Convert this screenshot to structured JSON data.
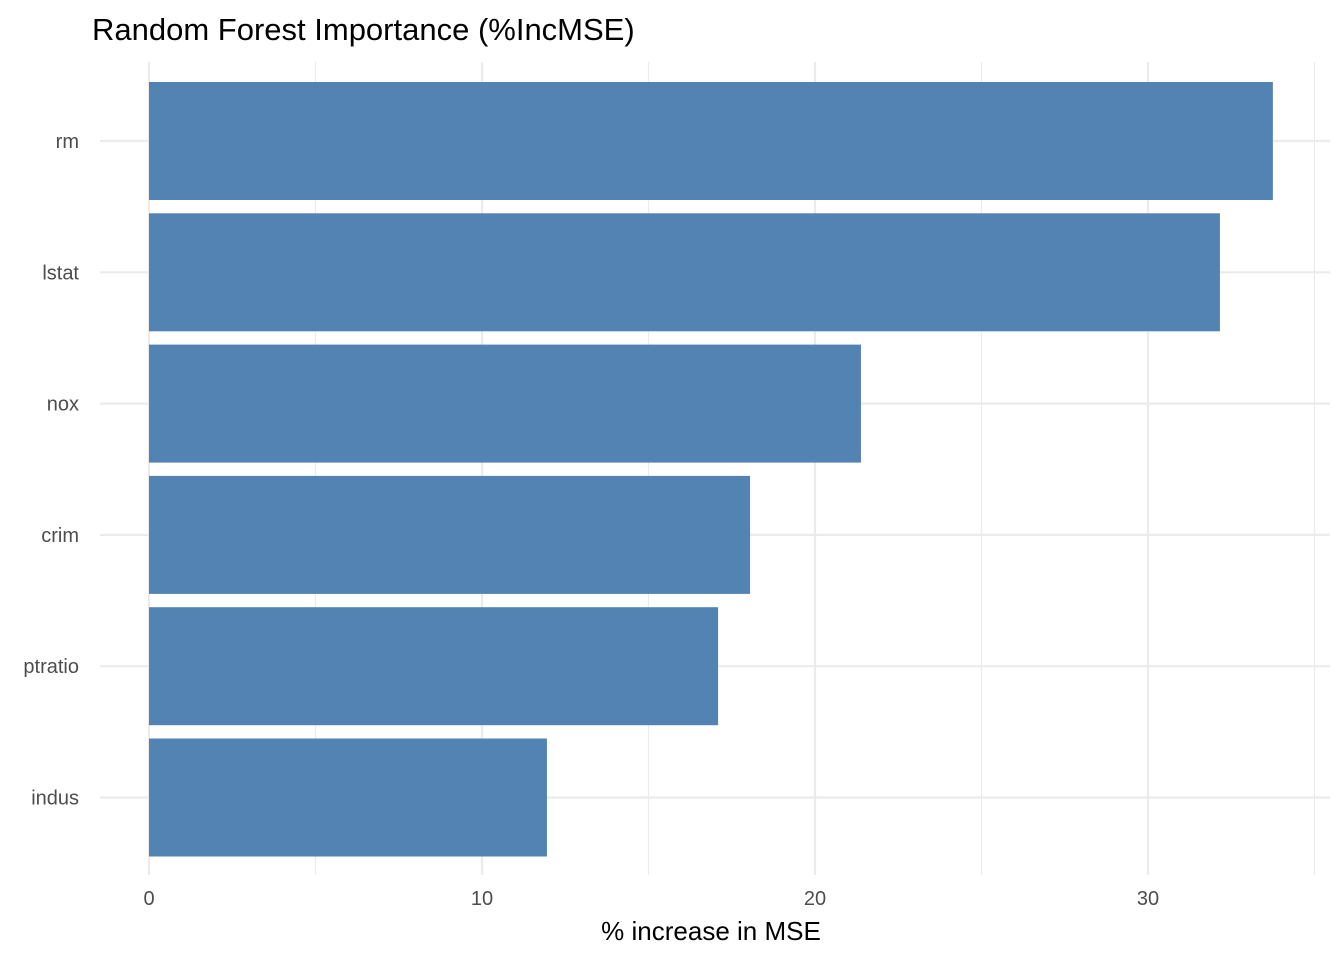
{
  "chart_data": {
    "type": "bar",
    "orientation": "horizontal",
    "title": "Random Forest Importance (%IncMSE)",
    "xlabel": "% increase in MSE",
    "ylabel": "",
    "categories": [
      "rm",
      "lstat",
      "nox",
      "crim",
      "ptratio",
      "indus"
    ],
    "values": [
      33.75,
      32.16,
      21.38,
      18.05,
      17.09,
      11.95
    ],
    "xlim": [
      0,
      35
    ],
    "xticks": [
      0,
      10,
      20,
      30
    ],
    "xtick_labels": [
      "0",
      "10",
      "20",
      "30"
    ],
    "grid": true,
    "bar_color": "#5383B3",
    "grid_color": "#EBEBEB"
  }
}
